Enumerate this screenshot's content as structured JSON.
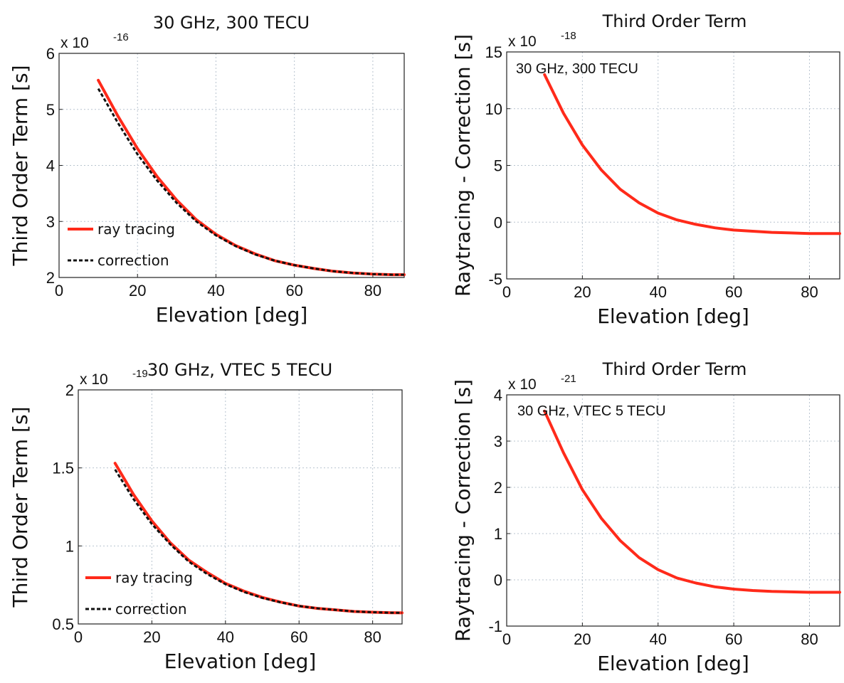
{
  "chart_data": [
    {
      "type": "line",
      "title": "30 GHz, 300 TECU",
      "xlabel": "Elevation [deg]",
      "ylabel": "Third Order Term [s]",
      "xlim": [
        0,
        88
      ],
      "ylim": [
        2,
        6
      ],
      "xticks": [
        0,
        20,
        40,
        60,
        80
      ],
      "yticks": [
        2,
        3,
        4,
        5,
        6
      ],
      "multiplier_base": "x 10",
      "multiplier_exp": "-16",
      "grid": true,
      "legend": "lower-left",
      "series": [
        {
          "name": "ray tracing",
          "color": "#ff2a1a",
          "dash": "solid",
          "x": [
            10,
            15,
            20,
            25,
            30,
            35,
            40,
            45,
            50,
            55,
            60,
            65,
            70,
            75,
            80,
            85,
            88
          ],
          "y": [
            5.52,
            4.88,
            4.3,
            3.8,
            3.38,
            3.03,
            2.77,
            2.57,
            2.42,
            2.3,
            2.22,
            2.16,
            2.11,
            2.08,
            2.06,
            2.05,
            2.05
          ]
        },
        {
          "name": "correction",
          "color": "#111111",
          "dash": "dashed",
          "x": [
            10,
            15,
            20,
            25,
            30,
            35,
            40,
            45,
            50,
            55,
            60,
            65,
            70,
            75,
            80,
            85,
            88
          ],
          "y": [
            5.37,
            4.76,
            4.2,
            3.73,
            3.33,
            3.0,
            2.75,
            2.56,
            2.41,
            2.3,
            2.22,
            2.16,
            2.11,
            2.08,
            2.06,
            2.05,
            2.05
          ]
        }
      ]
    },
    {
      "type": "line",
      "title": "Third Order Term",
      "annotation": "30 GHz, 300 TECU",
      "xlabel": "Elevation [deg]",
      "ylabel": "Raytracing - Correction [s]",
      "xlim": [
        0,
        88
      ],
      "ylim": [
        -5,
        15
      ],
      "xticks": [
        0,
        20,
        40,
        60,
        80
      ],
      "yticks": [
        -5,
        0,
        5,
        10,
        15
      ],
      "multiplier_base": "x 10",
      "multiplier_exp": "-18",
      "grid": true,
      "series": [
        {
          "color": "#ff2a1a",
          "dash": "solid",
          "x": [
            10,
            15,
            20,
            25,
            30,
            35,
            40,
            45,
            50,
            55,
            60,
            65,
            70,
            75,
            80,
            85,
            88
          ],
          "y": [
            13.0,
            9.6,
            6.8,
            4.6,
            2.9,
            1.7,
            0.8,
            0.2,
            -0.2,
            -0.5,
            -0.7,
            -0.8,
            -0.9,
            -0.95,
            -1.0,
            -1.0,
            -1.0
          ]
        }
      ]
    },
    {
      "type": "line",
      "title": "30 GHz, VTEC 5 TECU",
      "xlabel": "Elevation [deg]",
      "ylabel": "Third Order Term [s]",
      "xlim": [
        0,
        88
      ],
      "ylim": [
        0.5,
        2
      ],
      "xticks": [
        0,
        20,
        40,
        60,
        80
      ],
      "yticks": [
        0.5,
        1,
        1.5,
        2
      ],
      "multiplier_base": "x 10",
      "multiplier_exp": "-19",
      "grid": true,
      "legend": "lower-left",
      "series": [
        {
          "name": "ray tracing",
          "color": "#ff2a1a",
          "dash": "solid",
          "x": [
            10,
            15,
            20,
            25,
            30,
            35,
            40,
            45,
            50,
            55,
            60,
            65,
            70,
            75,
            80,
            85,
            88
          ],
          "y": [
            1.53,
            1.33,
            1.16,
            1.02,
            0.91,
            0.83,
            0.76,
            0.71,
            0.67,
            0.64,
            0.615,
            0.6,
            0.59,
            0.58,
            0.575,
            0.572,
            0.571
          ]
        },
        {
          "name": "correction",
          "color": "#111111",
          "dash": "dashed",
          "x": [
            10,
            15,
            20,
            25,
            30,
            35,
            40,
            45,
            50,
            55,
            60,
            65,
            70,
            75,
            80,
            85,
            88
          ],
          "y": [
            1.49,
            1.3,
            1.14,
            1.01,
            0.9,
            0.82,
            0.755,
            0.705,
            0.667,
            0.638,
            0.615,
            0.6,
            0.59,
            0.58,
            0.575,
            0.572,
            0.571
          ]
        }
      ]
    },
    {
      "type": "line",
      "title": "Third Order Term",
      "annotation": "30 GHz, VTEC 5 TECU",
      "xlabel": "Elevation [deg]",
      "ylabel": "Raytracing - Correction [s]",
      "xlim": [
        0,
        88
      ],
      "ylim": [
        -1,
        4
      ],
      "xticks": [
        0,
        20,
        40,
        60,
        80
      ],
      "yticks": [
        -1,
        0,
        1,
        2,
        3,
        4
      ],
      "multiplier_base": "x 10",
      "multiplier_exp": "-21",
      "grid": true,
      "series": [
        {
          "color": "#ff2a1a",
          "dash": "solid",
          "x": [
            10,
            15,
            20,
            25,
            30,
            35,
            40,
            45,
            50,
            55,
            60,
            65,
            70,
            75,
            80,
            85,
            88
          ],
          "y": [
            3.65,
            2.75,
            1.95,
            1.33,
            0.85,
            0.48,
            0.22,
            0.04,
            -0.07,
            -0.15,
            -0.2,
            -0.23,
            -0.25,
            -0.26,
            -0.27,
            -0.27,
            -0.27
          ]
        }
      ]
    }
  ]
}
